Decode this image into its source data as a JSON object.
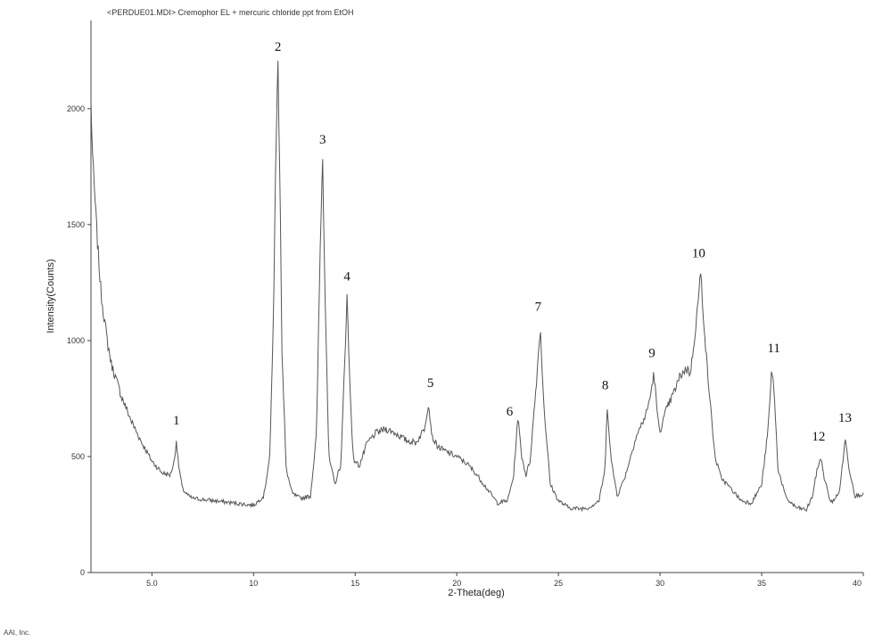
{
  "header": {
    "title": "<PERDUE01.MDI> Cremophor EL + mercuric chloride ppt from EtOH"
  },
  "footer": {
    "company": "AAI, Inc."
  },
  "chart_data": {
    "type": "line",
    "title": "<PERDUE01.MDI> Cremophor EL + mercuric chloride ppt from EtOH",
    "xlabel": "2-Theta(deg)",
    "ylabel": "Intensity(Counts)",
    "xlim": [
      2,
      40
    ],
    "ylim": [
      0,
      2380
    ],
    "x_ticks": [
      5.0,
      10,
      15,
      20,
      25,
      30,
      35,
      40
    ],
    "x_tick_labels": [
      "5.0",
      "10",
      "15",
      "20",
      "25",
      "30",
      "35",
      "40"
    ],
    "y_ticks": [
      0,
      500,
      1000,
      1500,
      2000
    ],
    "y_tick_labels": [
      "0",
      "500",
      "1000",
      "1500",
      "2000"
    ],
    "grid": false,
    "series": [
      {
        "values_description": "X-ray powder diffraction pattern",
        "x": [
          2.0,
          2.1,
          2.3,
          2.5,
          2.8,
          3.0,
          3.5,
          4.0,
          4.5,
          5.0,
          5.5,
          5.9,
          6.1,
          6.2,
          6.3,
          6.5,
          6.8,
          7.0,
          7.5,
          8.0,
          8.5,
          9.0,
          9.5,
          10.0,
          10.5,
          10.8,
          11.0,
          11.1,
          11.2,
          11.3,
          11.4,
          11.6,
          11.9,
          12.3,
          12.8,
          13.1,
          13.3,
          13.4,
          13.5,
          13.7,
          14.0,
          14.3,
          14.5,
          14.6,
          14.7,
          14.9,
          15.2,
          15.6,
          16.0,
          16.5,
          17.0,
          17.5,
          18.0,
          18.4,
          18.6,
          18.8,
          19.1,
          19.5,
          20.0,
          20.5,
          21.0,
          21.5,
          22.0,
          22.5,
          22.8,
          23.0,
          23.2,
          23.4,
          23.6,
          23.9,
          24.1,
          24.3,
          24.6,
          25.0,
          25.5,
          26.0,
          26.5,
          27.0,
          27.3,
          27.4,
          27.6,
          27.9,
          28.3,
          28.8,
          29.3,
          29.5,
          29.7,
          29.9,
          30.0,
          30.3,
          30.7,
          31.0,
          31.3,
          31.5,
          31.8,
          32.0,
          32.3,
          32.7,
          33.0,
          33.5,
          34.0,
          34.5,
          35.0,
          35.3,
          35.5,
          35.6,
          35.8,
          36.2,
          36.7,
          37.2,
          37.5,
          37.7,
          37.9,
          38.1,
          38.4,
          38.8,
          39.0,
          39.1,
          39.3,
          39.6,
          40.0
        ],
        "y": [
          2020,
          1750,
          1450,
          1200,
          1000,
          900,
          760,
          650,
          560,
          480,
          430,
          420,
          480,
          570,
          470,
          360,
          330,
          320,
          315,
          310,
          305,
          300,
          295,
          290,
          330,
          500,
          1200,
          1850,
          2180,
          1700,
          950,
          450,
          340,
          320,
          330,
          600,
          1500,
          1780,
          1300,
          500,
          380,
          470,
          950,
          1190,
          900,
          490,
          460,
          560,
          600,
          620,
          600,
          570,
          560,
          620,
          730,
          580,
          540,
          520,
          500,
          470,
          420,
          360,
          300,
          310,
          420,
          670,
          500,
          420,
          480,
          800,
          1060,
          700,
          380,
          310,
          280,
          275,
          280,
          310,
          450,
          720,
          480,
          330,
          420,
          580,
          680,
          750,
          860,
          650,
          610,
          700,
          780,
          850,
          880,
          860,
          1100,
          1290,
          900,
          500,
          410,
          360,
          310,
          300,
          380,
          600,
          880,
          800,
          450,
          320,
          280,
          270,
          330,
          430,
          500,
          400,
          300,
          340,
          480,
          580,
          450,
          330,
          340
        ]
      }
    ],
    "peak_labels": [
      {
        "label": "1",
        "x": 6.2
      },
      {
        "label": "2",
        "x": 11.2
      },
      {
        "label": "3",
        "x": 13.4
      },
      {
        "label": "4",
        "x": 14.6
      },
      {
        "label": "5",
        "x": 18.7
      },
      {
        "label": "6",
        "x": 22.6
      },
      {
        "label": "7",
        "x": 24.0
      },
      {
        "label": "8",
        "x": 27.3
      },
      {
        "label": "9",
        "x": 29.6
      },
      {
        "label": "10",
        "x": 31.9
      },
      {
        "label": "11",
        "x": 35.6
      },
      {
        "label": "12",
        "x": 37.8
      },
      {
        "label": "13",
        "x": 39.1
      }
    ]
  }
}
